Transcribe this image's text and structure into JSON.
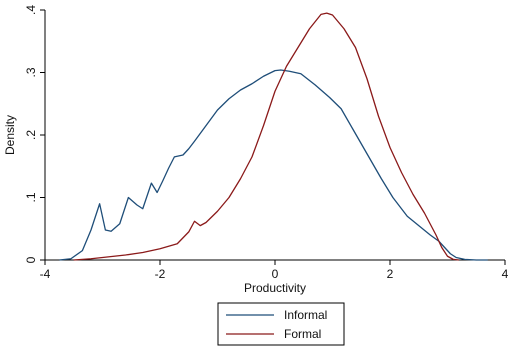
{
  "chart_data": {
    "type": "line",
    "title": "",
    "xlabel": "Productivity",
    "ylabel": "Density",
    "xlim": [
      -4,
      4
    ],
    "ylim": [
      0,
      0.4
    ],
    "xticks": [
      -4,
      -2,
      0,
      2,
      4
    ],
    "xtick_labels": [
      "-4",
      "-2",
      "0",
      "2",
      "4"
    ],
    "yticks": [
      0,
      0.1,
      0.2,
      0.3,
      0.4
    ],
    "ytick_labels": [
      "0",
      ".1",
      ".2",
      ".3",
      ".4"
    ],
    "grid": false,
    "legend_position": "bottom",
    "series": [
      {
        "name": "Informal",
        "color": "#1f4e79",
        "x": [
          -3.75,
          -3.55,
          -3.35,
          -3.2,
          -3.05,
          -2.95,
          -2.85,
          -2.7,
          -2.55,
          -2.4,
          -2.3,
          -2.15,
          -2.05,
          -1.95,
          -1.85,
          -1.75,
          -1.6,
          -1.5,
          -1.4,
          -1.2,
          -1.0,
          -0.8,
          -0.6,
          -0.4,
          -0.2,
          0.0,
          0.1,
          0.25,
          0.45,
          0.7,
          0.95,
          1.15,
          1.35,
          1.6,
          1.85,
          2.05,
          2.3,
          2.5,
          2.7,
          2.85,
          2.95,
          3.05,
          3.15,
          3.3,
          3.5,
          3.7
        ],
        "values": [
          0.0,
          0.002,
          0.015,
          0.048,
          0.09,
          0.048,
          0.046,
          0.058,
          0.1,
          0.088,
          0.082,
          0.123,
          0.108,
          0.127,
          0.147,
          0.165,
          0.168,
          0.178,
          0.19,
          0.215,
          0.24,
          0.258,
          0.272,
          0.282,
          0.294,
          0.303,
          0.304,
          0.302,
          0.298,
          0.28,
          0.26,
          0.242,
          0.21,
          0.17,
          0.13,
          0.1,
          0.07,
          0.055,
          0.04,
          0.03,
          0.02,
          0.01,
          0.004,
          0.001,
          0.0,
          0.0
        ]
      },
      {
        "name": "Formal",
        "color": "#8b1a1a",
        "x": [
          -3.5,
          -3.2,
          -2.9,
          -2.6,
          -2.3,
          -2.0,
          -1.7,
          -1.5,
          -1.4,
          -1.3,
          -1.2,
          -1.0,
          -0.8,
          -0.6,
          -0.4,
          -0.2,
          0.0,
          0.2,
          0.4,
          0.6,
          0.8,
          0.9,
          1.0,
          1.2,
          1.4,
          1.6,
          1.8,
          2.0,
          2.2,
          2.4,
          2.6,
          2.8,
          2.9,
          3.0,
          3.1,
          3.2
        ],
        "values": [
          0.0,
          0.002,
          0.005,
          0.008,
          0.012,
          0.018,
          0.026,
          0.045,
          0.062,
          0.055,
          0.06,
          0.078,
          0.1,
          0.13,
          0.165,
          0.215,
          0.27,
          0.31,
          0.34,
          0.37,
          0.393,
          0.395,
          0.392,
          0.37,
          0.34,
          0.29,
          0.23,
          0.18,
          0.14,
          0.105,
          0.075,
          0.04,
          0.02,
          0.006,
          0.001,
          0.0
        ]
      }
    ]
  }
}
